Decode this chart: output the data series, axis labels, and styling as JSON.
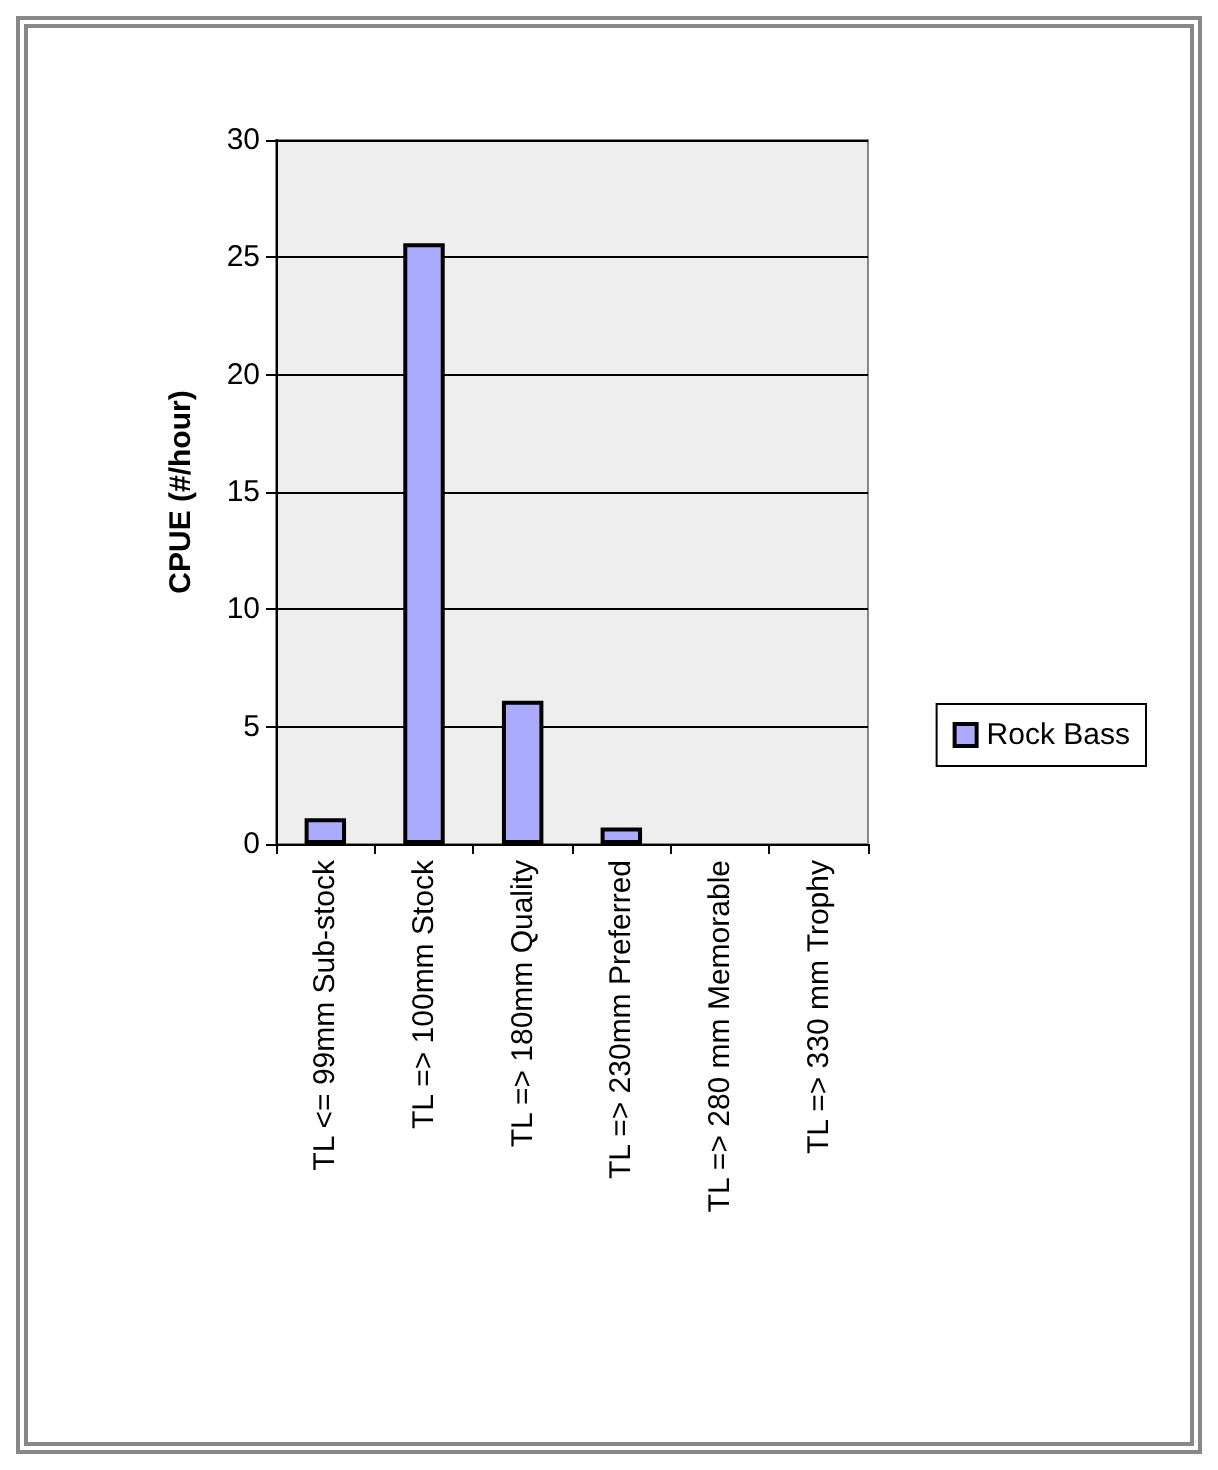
{
  "chart_data": {
    "type": "bar",
    "categories": [
      "TL <= 99mm Sub-stock",
      "TL => 100mm Stock",
      "TL => 180mm Quality",
      "TL => 230mm Preferred",
      "TL => 280 mm Memorable",
      "TL => 330 mm Trophy"
    ],
    "series": [
      {
        "name": "Rock Bass",
        "color": "#aaaaff",
        "values": [
          1.1,
          25.6,
          6.1,
          0.7,
          0,
          0
        ]
      }
    ],
    "ylabel": "CPUE (#/hour)",
    "ylim": [
      0,
      30
    ],
    "yticks": [
      0,
      5,
      10,
      15,
      20,
      25,
      30
    ],
    "grid": "y",
    "legend": "right"
  }
}
